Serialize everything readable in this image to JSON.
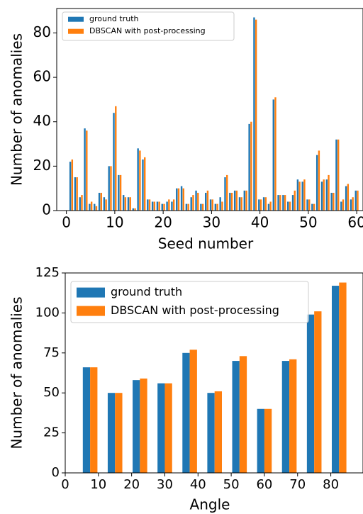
{
  "chart_data": [
    {
      "type": "bar",
      "xlabel": "Seed number",
      "ylabel": "Number of anomalies",
      "legend": "upper left",
      "x": [
        1,
        2,
        3,
        4,
        5,
        6,
        7,
        8,
        9,
        10,
        11,
        12,
        13,
        14,
        15,
        16,
        17,
        18,
        19,
        20,
        21,
        22,
        23,
        24,
        25,
        26,
        27,
        28,
        29,
        30,
        31,
        32,
        33,
        34,
        35,
        36,
        37,
        38,
        39,
        40,
        41,
        42,
        43,
        44,
        45,
        46,
        47,
        48,
        49,
        50,
        51,
        52,
        53,
        54,
        55,
        56,
        57,
        58,
        59,
        60
      ],
      "series": [
        {
          "name": "ground truth",
          "color": "#1f77b4",
          "values": [
            22,
            15,
            6,
            37,
            3,
            3,
            8,
            6,
            20,
            44,
            16,
            7,
            6,
            1,
            28,
            23,
            5,
            4,
            4,
            3,
            4,
            4,
            10,
            11,
            3,
            6,
            9,
            3,
            8,
            5,
            3,
            6,
            15,
            8,
            9,
            6,
            9,
            39,
            87,
            5,
            6,
            3,
            50,
            7,
            7,
            4,
            7,
            14,
            13,
            5,
            3,
            25,
            13,
            14,
            8,
            32,
            4,
            11,
            5,
            9
          ]
        },
        {
          "name": "DBSCAN with post-processing",
          "color": "#ff7f0e",
          "values": [
            23,
            15,
            7,
            36,
            4,
            2,
            8,
            5,
            20,
            47,
            16,
            6,
            6,
            1,
            27,
            24,
            5,
            4,
            4,
            3,
            5,
            5,
            10,
            10,
            3,
            7,
            8,
            3,
            9,
            5,
            3,
            4,
            16,
            8,
            9,
            6,
            9,
            40,
            86,
            5,
            6,
            4,
            51,
            7,
            7,
            4,
            9,
            13,
            14,
            5,
            3,
            27,
            14,
            16,
            8,
            32,
            5,
            12,
            6,
            9
          ]
        }
      ],
      "xlim": [
        -2,
        61.3
      ],
      "xticks": [
        0,
        10,
        20,
        30,
        40,
        50,
        60
      ],
      "ylim": [
        0,
        91
      ],
      "yticks": [
        0,
        20,
        40,
        60,
        80
      ]
    },
    {
      "type": "bar",
      "xlabel": "Angle",
      "ylabel": "Number of anomalies",
      "legend": "upper left",
      "x": [
        7.5,
        15,
        22.5,
        30,
        37.5,
        45,
        52.5,
        60,
        67.5,
        75,
        82.5
      ],
      "series": [
        {
          "name": "ground truth",
          "color": "#1f77b4",
          "values": [
            66,
            50,
            58,
            56,
            75,
            50,
            70,
            40,
            70,
            99,
            117
          ]
        },
        {
          "name": "DBSCAN with post-processing",
          "color": "#ff7f0e",
          "values": [
            66,
            50,
            59,
            56,
            77,
            51,
            73,
            40,
            71,
            101,
            119
          ]
        }
      ],
      "xlim": [
        0,
        89.7
      ],
      "xticks": [
        0,
        10,
        20,
        30,
        40,
        50,
        60,
        70,
        80
      ],
      "ylim": [
        0,
        125
      ],
      "yticks": [
        0,
        25,
        50,
        75,
        100,
        125
      ]
    }
  ]
}
